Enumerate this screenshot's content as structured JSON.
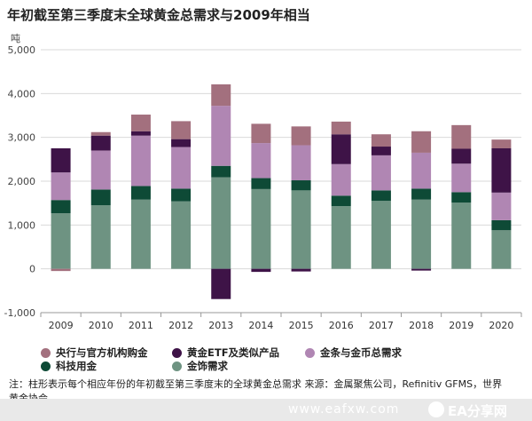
{
  "title": "年初截至第三季度末全球黄金总需求与2009年相当",
  "note": "注：柱形表示每个相应年份的年初截至第三季度末的全球黄金总需求 来源：金属聚焦公司，Refinitiv GFMS，世界黄金协会",
  "watermark": {
    "site": "www.eafxw.com",
    "brand": "EA分享网",
    "logo": "ea-logo-icon"
  },
  "chart_data": {
    "type": "bar",
    "stacked": true,
    "ylabel": "吨",
    "ylim": [
      -1000,
      5000
    ],
    "yticks": [
      -1000,
      0,
      1000,
      2000,
      3000,
      4000,
      5000
    ],
    "ytick_labels": [
      "-1,000",
      "0",
      "1,000",
      "2,000",
      "3,000",
      "4,000",
      "5,000"
    ],
    "grid": true,
    "legend_position": "bottom",
    "categories": [
      "2009",
      "2010",
      "2011",
      "2012",
      "2013",
      "2014",
      "2015",
      "2016",
      "2017",
      "2018",
      "2019",
      "2020"
    ],
    "series": [
      {
        "name": "金饰需求",
        "color": "#6e9382",
        "values": [
          1270,
          1450,
          1580,
          1540,
          2090,
          1820,
          1790,
          1430,
          1550,
          1580,
          1510,
          880
        ]
      },
      {
        "name": "科技用金",
        "color": "#0e4a36",
        "values": [
          300,
          360,
          310,
          290,
          260,
          250,
          230,
          240,
          240,
          250,
          240,
          230
        ]
      },
      {
        "name": "金条与金币总需求",
        "color": "#b086b3",
        "values": [
          630,
          890,
          1150,
          950,
          1370,
          800,
          800,
          720,
          800,
          820,
          650,
          630
        ]
      },
      {
        "name": "黄金ETF及类似产品",
        "color": "#3e1347",
        "values": [
          550,
          340,
          100,
          180,
          -690,
          -70,
          -60,
          680,
          200,
          0,
          340,
          1010
        ]
      },
      {
        "name": "央行与官方机构购金",
        "color": "#a3707e",
        "values": [
          -50,
          80,
          380,
          410,
          490,
          440,
          430,
          290,
          280,
          490,
          540,
          200
        ]
      }
    ],
    "extra_negative_segments": [
      {
        "series": "黄金ETF及类似产品",
        "category": "2018",
        "value": -40
      }
    ]
  },
  "legend": [
    {
      "label": "央行与官方机构购金",
      "color": "#a3707e"
    },
    {
      "label": "黄金ETF及类似产品",
      "color": "#3e1347"
    },
    {
      "label": "金条与金币总需求",
      "color": "#b086b3"
    },
    {
      "label": "科技用金",
      "color": "#0e4a36"
    },
    {
      "label": "金饰需求",
      "color": "#6e9382"
    }
  ]
}
